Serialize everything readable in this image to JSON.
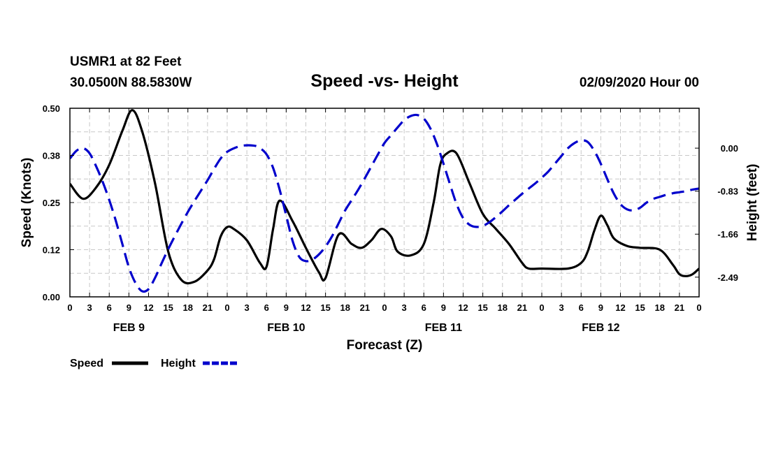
{
  "header": {
    "station": "USMR1 at 82 Feet",
    "coords": "30.0500N 88.5830W",
    "date": "02/09/2020 Hour 00"
  },
  "chart_data": {
    "type": "line",
    "title": "Speed -vs- Height",
    "xlabel": "Forecast (Z)",
    "ylabel_left": "Speed (Knots)",
    "ylabel_right": "Height (feet)",
    "x_range_hours": [
      0,
      96
    ],
    "x_tick_step_hours": 3,
    "x_tick_labels": [
      "0",
      "3",
      "6",
      "9",
      "12",
      "15",
      "18",
      "21",
      "0",
      "3",
      "6",
      "9",
      "12",
      "15",
      "18",
      "21",
      "0",
      "3",
      "6",
      "9",
      "12",
      "15",
      "18",
      "21",
      "0",
      "3",
      "6",
      "9",
      "12",
      "15",
      "18",
      "21",
      "0"
    ],
    "day_labels": [
      {
        "label": "FEB 9",
        "hour": 9
      },
      {
        "label": "FEB 10",
        "hour": 33
      },
      {
        "label": "FEB 11",
        "hour": 57
      },
      {
        "label": "FEB 12",
        "hour": 81
      }
    ],
    "ylim_left": [
      0,
      0.5
    ],
    "yticks_left": [
      "0.00",
      "0.12",
      "0.25",
      "0.38",
      "0.50"
    ],
    "ylim_right": [
      -2.87,
      0.77
    ],
    "yticks_right": [
      {
        "label": "0.00",
        "value": 0.0
      },
      {
        "label": "-0.83",
        "value": -0.83
      },
      {
        "label": "-1.66",
        "value": -1.66
      },
      {
        "label": "-2.49",
        "value": -2.49
      }
    ],
    "grid": true,
    "series": [
      {
        "name": "Speed",
        "axis": "left",
        "color": "#000000",
        "style": "solid",
        "points": [
          [
            0,
            0.3
          ],
          [
            2,
            0.26
          ],
          [
            4,
            0.29
          ],
          [
            6,
            0.35
          ],
          [
            8,
            0.44
          ],
          [
            9.5,
            0.495
          ],
          [
            11,
            0.44
          ],
          [
            13,
            0.3
          ],
          [
            15,
            0.12
          ],
          [
            17,
            0.045
          ],
          [
            19,
            0.04
          ],
          [
            21,
            0.07
          ],
          [
            22,
            0.1
          ],
          [
            23,
            0.16
          ],
          [
            24,
            0.185
          ],
          [
            25,
            0.18
          ],
          [
            27,
            0.15
          ],
          [
            29,
            0.09
          ],
          [
            30,
            0.08
          ],
          [
            31,
            0.18
          ],
          [
            32,
            0.255
          ],
          [
            34,
            0.2
          ],
          [
            36,
            0.13
          ],
          [
            38,
            0.065
          ],
          [
            39,
            0.05
          ],
          [
            41,
            0.165
          ],
          [
            43,
            0.14
          ],
          [
            44.5,
            0.13
          ],
          [
            46,
            0.15
          ],
          [
            47.5,
            0.18
          ],
          [
            49,
            0.16
          ],
          [
            50,
            0.12
          ],
          [
            52,
            0.11
          ],
          [
            54,
            0.14
          ],
          [
            55.5,
            0.25
          ],
          [
            56.5,
            0.35
          ],
          [
            57.5,
            0.38
          ],
          [
            59,
            0.38
          ],
          [
            61,
            0.3
          ],
          [
            63,
            0.22
          ],
          [
            65,
            0.18
          ],
          [
            67,
            0.14
          ],
          [
            69,
            0.09
          ],
          [
            70,
            0.075
          ],
          [
            72,
            0.075
          ],
          [
            76,
            0.075
          ],
          [
            78,
            0.09
          ],
          [
            79,
            0.12
          ],
          [
            80,
            0.175
          ],
          [
            81,
            0.215
          ],
          [
            82,
            0.19
          ],
          [
            83,
            0.155
          ],
          [
            85,
            0.135
          ],
          [
            87,
            0.13
          ],
          [
            90,
            0.125
          ],
          [
            92,
            0.085
          ],
          [
            93,
            0.06
          ],
          [
            94,
            0.055
          ],
          [
            95,
            0.06
          ],
          [
            96,
            0.075
          ]
        ]
      },
      {
        "name": "Height",
        "axis": "right",
        "color": "#0000cc",
        "style": "dashed",
        "points": [
          [
            0,
            -0.2
          ],
          [
            1,
            -0.05
          ],
          [
            2,
            0.0
          ],
          [
            3,
            -0.1
          ],
          [
            4,
            -0.35
          ],
          [
            5,
            -0.65
          ],
          [
            6,
            -1.0
          ],
          [
            7,
            -1.4
          ],
          [
            8,
            -1.85
          ],
          [
            9,
            -2.3
          ],
          [
            10,
            -2.6
          ],
          [
            11,
            -2.76
          ],
          [
            12,
            -2.72
          ],
          [
            13,
            -2.5
          ],
          [
            14,
            -2.22
          ],
          [
            15,
            -1.95
          ],
          [
            16,
            -1.7
          ],
          [
            17,
            -1.46
          ],
          [
            18,
            -1.23
          ],
          [
            19,
            -1.02
          ],
          [
            20,
            -0.82
          ],
          [
            21,
            -0.62
          ],
          [
            22,
            -0.4
          ],
          [
            23,
            -0.2
          ],
          [
            24,
            -0.07
          ],
          [
            26,
            0.04
          ],
          [
            28,
            0.05
          ],
          [
            29,
            0.0
          ],
          [
            30,
            -0.12
          ],
          [
            31,
            -0.38
          ],
          [
            32,
            -0.8
          ],
          [
            33,
            -1.3
          ],
          [
            34,
            -1.8
          ],
          [
            35,
            -2.1
          ],
          [
            36,
            -2.18
          ],
          [
            37,
            -2.15
          ],
          [
            38,
            -2.05
          ],
          [
            39,
            -1.9
          ],
          [
            40,
            -1.7
          ],
          [
            41,
            -1.45
          ],
          [
            42,
            -1.2
          ],
          [
            43,
            -1.0
          ],
          [
            44,
            -0.8
          ],
          [
            45,
            -0.58
          ],
          [
            46,
            -0.35
          ],
          [
            47,
            -0.12
          ],
          [
            48,
            0.1
          ],
          [
            49,
            0.25
          ],
          [
            50,
            0.4
          ],
          [
            51,
            0.54
          ],
          [
            52,
            0.62
          ],
          [
            53,
            0.64
          ],
          [
            54,
            0.57
          ],
          [
            55,
            0.38
          ],
          [
            56,
            0.08
          ],
          [
            57,
            -0.3
          ],
          [
            58,
            -0.7
          ],
          [
            59,
            -1.08
          ],
          [
            60,
            -1.35
          ],
          [
            61,
            -1.48
          ],
          [
            62,
            -1.52
          ],
          [
            63,
            -1.5
          ],
          [
            64,
            -1.43
          ],
          [
            65,
            -1.33
          ],
          [
            66,
            -1.22
          ],
          [
            67,
            -1.1
          ],
          [
            68,
            -0.99
          ],
          [
            69,
            -0.88
          ],
          [
            70,
            -0.78
          ],
          [
            71,
            -0.68
          ],
          [
            72,
            -0.57
          ],
          [
            73,
            -0.45
          ],
          [
            74,
            -0.3
          ],
          [
            75,
            -0.15
          ],
          [
            76,
            0.0
          ],
          [
            77,
            0.1
          ],
          [
            78,
            0.15
          ],
          [
            79,
            0.12
          ],
          [
            80,
            -0.05
          ],
          [
            81,
            -0.3
          ],
          [
            82,
            -0.6
          ],
          [
            83,
            -0.88
          ],
          [
            84,
            -1.08
          ],
          [
            85,
            -1.18
          ],
          [
            86,
            -1.2
          ],
          [
            87,
            -1.15
          ],
          [
            88,
            -1.05
          ],
          [
            89,
            -0.98
          ],
          [
            90,
            -0.94
          ],
          [
            91,
            -0.9
          ],
          [
            92,
            -0.87
          ],
          [
            93,
            -0.85
          ],
          [
            94,
            -0.83
          ],
          [
            95,
            -0.8
          ],
          [
            96,
            -0.78
          ]
        ]
      }
    ],
    "legend": {
      "position": "bottom-left",
      "entries": [
        "Speed",
        "Height"
      ]
    }
  }
}
